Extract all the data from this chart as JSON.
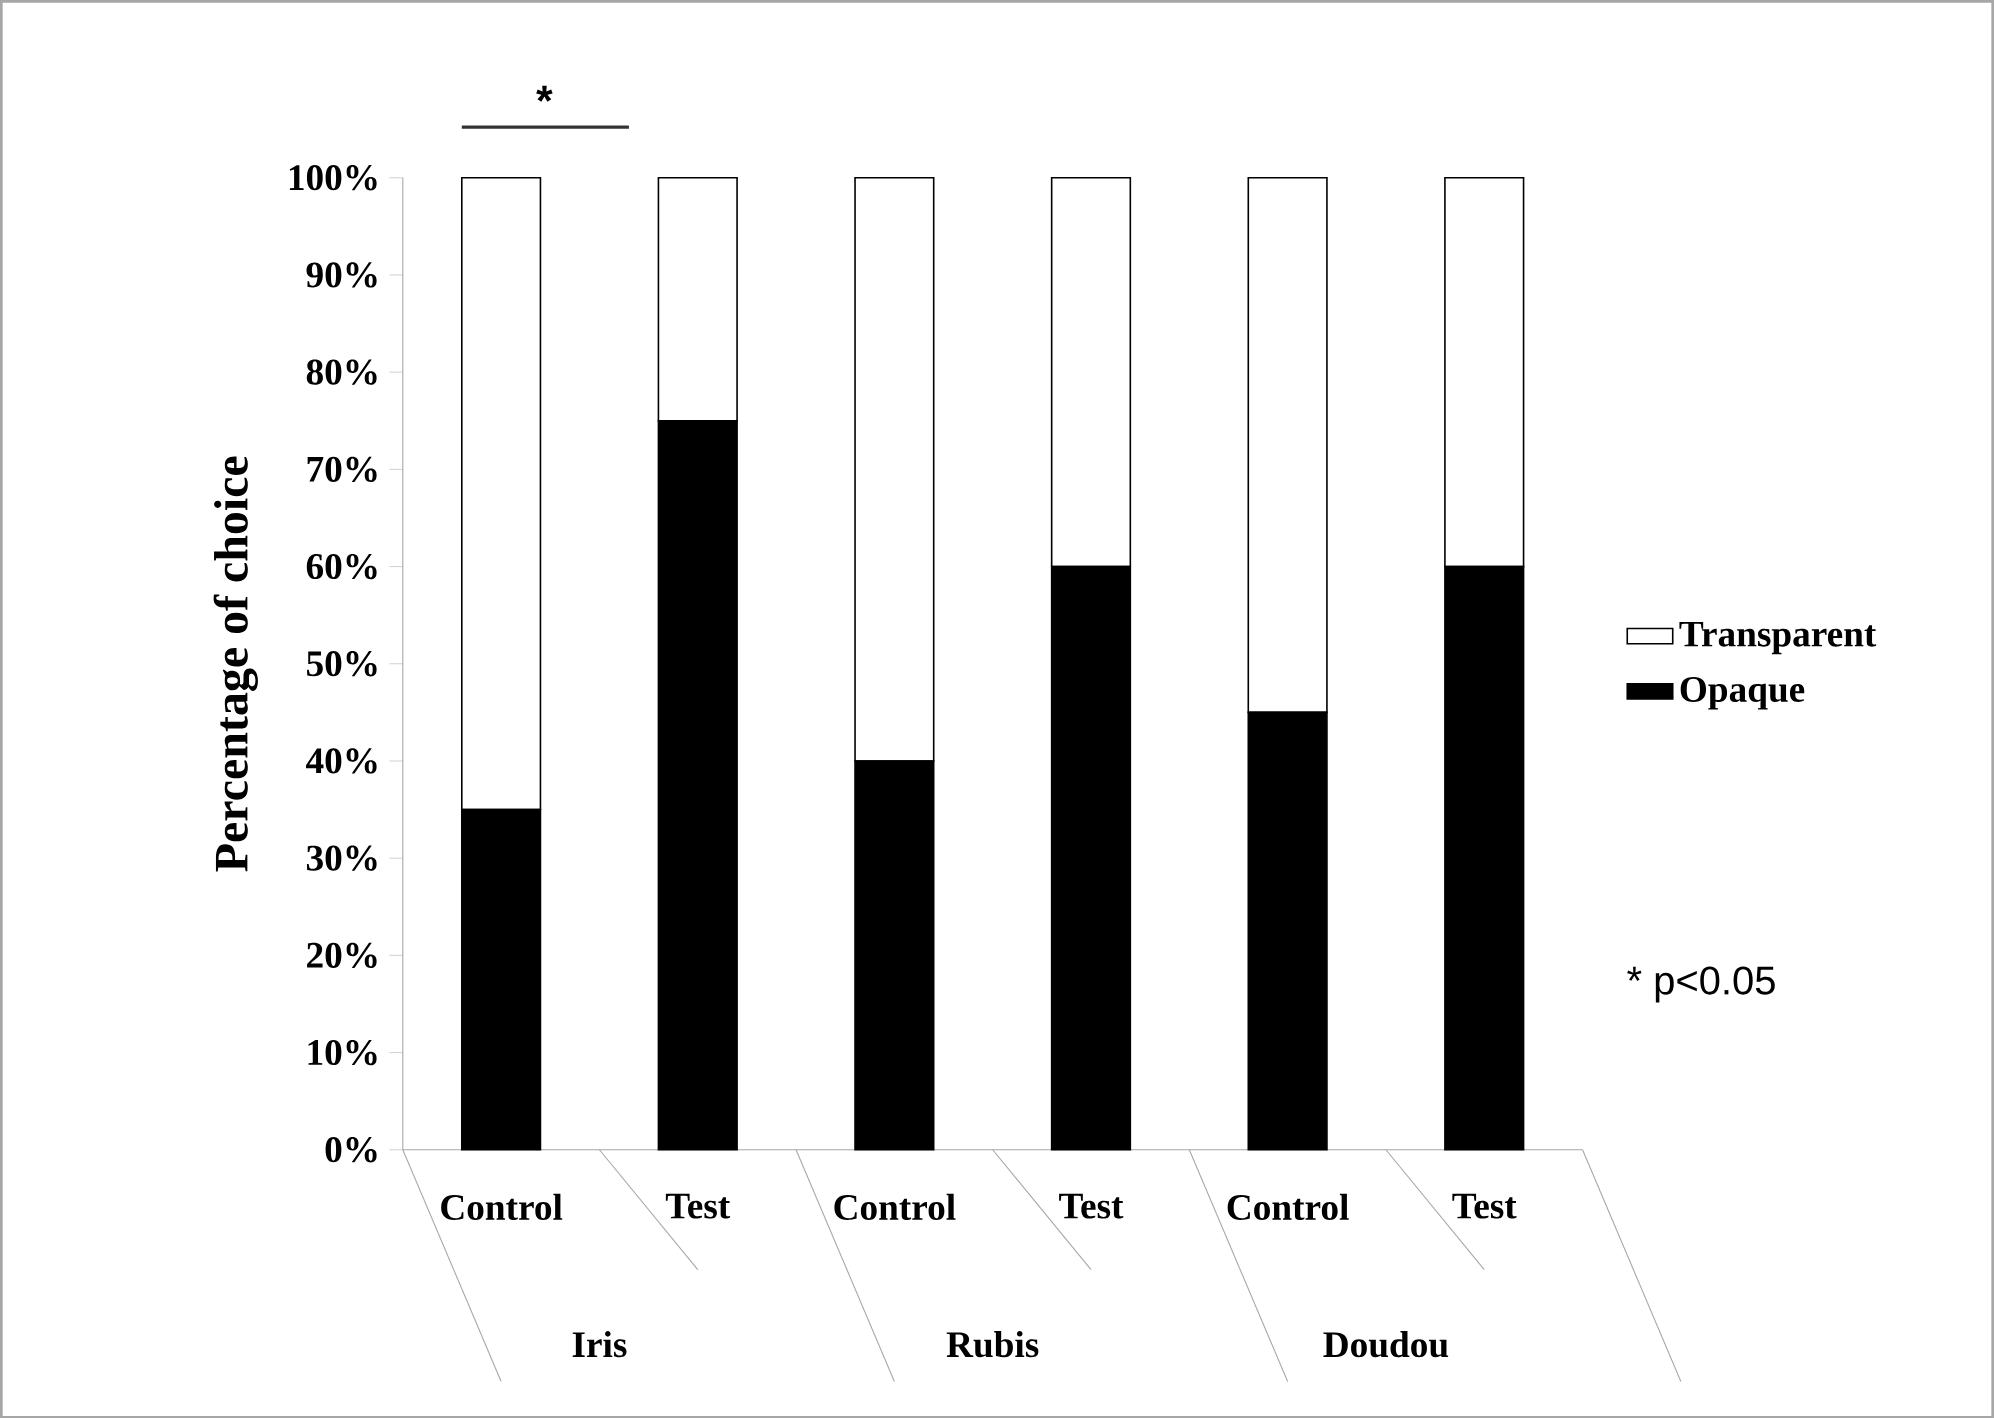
{
  "chart_data": {
    "type": "bar",
    "stacked": true,
    "ylabel": "Percentage of choice",
    "categories": [
      "Control",
      "Test",
      "Control",
      "Test",
      "Control",
      "Test"
    ],
    "series": [
      {
        "name": "Opaque",
        "color": "#000000",
        "values": [
          35,
          75,
          40,
          60,
          45,
          60
        ]
      },
      {
        "name": "Transparent",
        "color": "#ffffff",
        "values": [
          65,
          25,
          60,
          40,
          55,
          40
        ]
      }
    ],
    "ylim": [
      0,
      100
    ],
    "yticks": [
      {
        "value": 0,
        "label": "0%"
      },
      {
        "value": 10,
        "label": "10%"
      },
      {
        "value": 20,
        "label": "20%"
      },
      {
        "value": 30,
        "label": "30%"
      },
      {
        "value": 40,
        "label": "40%"
      },
      {
        "value": 50,
        "label": "50%"
      },
      {
        "value": 60,
        "label": "60%"
      },
      {
        "value": 70,
        "label": "70%"
      },
      {
        "value": 80,
        "label": "80%"
      },
      {
        "value": 90,
        "label": "90%"
      },
      {
        "value": 100,
        "label": "100%"
      }
    ],
    "legend": "right",
    "grid": false,
    "annotations": [
      "Iris",
      "Rubis",
      "Doudou",
      "*",
      "* p<0.05"
    ]
  }
}
